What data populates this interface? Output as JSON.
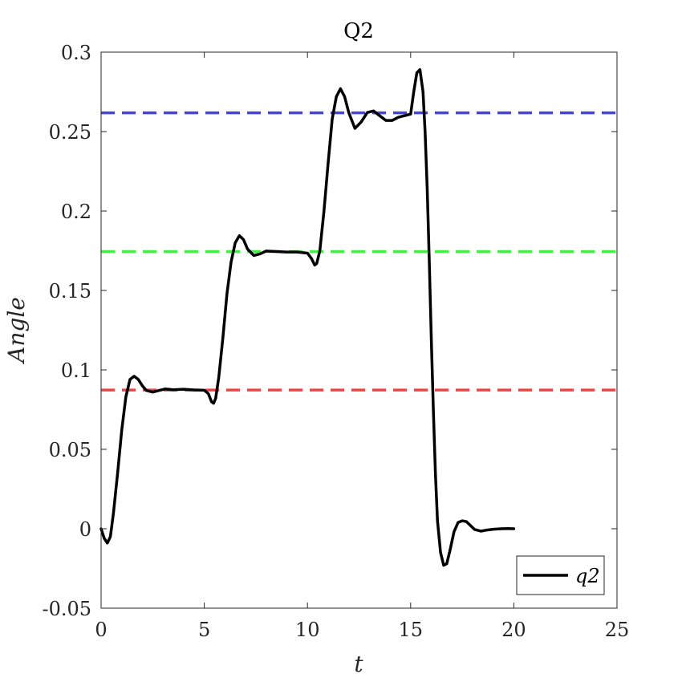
{
  "chart_data": {
    "type": "line",
    "title": "Q2",
    "xlabel": "t",
    "ylabel": "Angle",
    "xlim": [
      0,
      25
    ],
    "ylim": [
      -0.05,
      0.3
    ],
    "x_ticks": [
      "0",
      "5",
      "10",
      "15",
      "20",
      "25"
    ],
    "y_ticks": [
      "-0.05",
      "0",
      "0.05",
      "0.1",
      "0.15",
      "0.2",
      "0.25",
      "0.3"
    ],
    "grid": false,
    "legend_position": "bottom-right",
    "reference_lines": [
      {
        "y": 0.0873,
        "color": "#ee4444",
        "style": "dashed"
      },
      {
        "y": 0.1745,
        "color": "#44ee44",
        "style": "dashed"
      },
      {
        "y": 0.2618,
        "color": "#4444dd",
        "style": "dashed"
      }
    ],
    "series": [
      {
        "name": "q2",
        "color": "#000000",
        "x": [
          0,
          0.15,
          0.3,
          0.45,
          0.6,
          0.8,
          1.0,
          1.2,
          1.4,
          1.6,
          1.8,
          2.0,
          2.2,
          2.5,
          2.8,
          3.1,
          3.5,
          4.0,
          4.5,
          5.0,
          5.2,
          5.35,
          5.45,
          5.55,
          5.7,
          5.9,
          6.1,
          6.3,
          6.5,
          6.7,
          6.9,
          7.1,
          7.4,
          7.7,
          8.0,
          8.5,
          9.0,
          9.5,
          10.0,
          10.2,
          10.35,
          10.45,
          10.6,
          10.8,
          11.0,
          11.2,
          11.4,
          11.6,
          11.8,
          12.0,
          12.3,
          12.6,
          12.9,
          13.2,
          13.5,
          13.8,
          14.1,
          14.4,
          14.7,
          15.0,
          15.15,
          15.3,
          15.45,
          15.6,
          15.7,
          15.8,
          15.9,
          16.0,
          16.1,
          16.2,
          16.3,
          16.45,
          16.6,
          16.75,
          16.9,
          17.1,
          17.3,
          17.5,
          17.7,
          17.9,
          18.1,
          18.4,
          18.7,
          19.0,
          19.4,
          19.7,
          20.0
        ],
        "y": [
          0.0,
          -0.006,
          -0.009,
          -0.005,
          0.01,
          0.035,
          0.062,
          0.083,
          0.094,
          0.096,
          0.094,
          0.09,
          0.087,
          0.086,
          0.087,
          0.088,
          0.0875,
          0.0878,
          0.0874,
          0.0872,
          0.085,
          0.08,
          0.079,
          0.082,
          0.095,
          0.12,
          0.148,
          0.168,
          0.18,
          0.1845,
          0.182,
          0.176,
          0.172,
          0.173,
          0.1748,
          0.1745,
          0.1742,
          0.1742,
          0.1735,
          0.17,
          0.166,
          0.167,
          0.175,
          0.2,
          0.23,
          0.258,
          0.272,
          0.277,
          0.272,
          0.262,
          0.252,
          0.256,
          0.262,
          0.263,
          0.26,
          0.257,
          0.257,
          0.259,
          0.26,
          0.261,
          0.275,
          0.287,
          0.289,
          0.275,
          0.25,
          0.215,
          0.17,
          0.12,
          0.075,
          0.035,
          0.005,
          -0.015,
          -0.023,
          -0.022,
          -0.014,
          -0.002,
          0.004,
          0.005,
          0.0045,
          0.002,
          -0.0005,
          -0.0015,
          -0.0008,
          -0.0003,
          0.0,
          0.0001,
          0.0
        ]
      }
    ]
  }
}
